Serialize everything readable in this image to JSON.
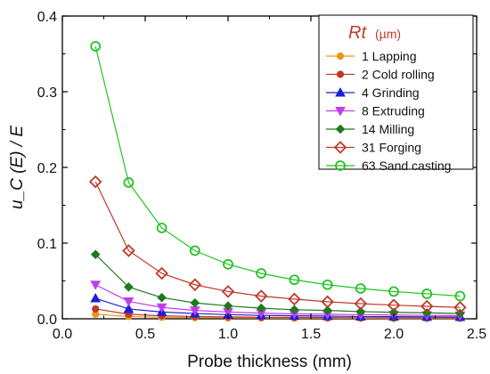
{
  "chart_data": {
    "type": "line",
    "xlabel": "Probe thickness (mm)",
    "ylabel": "u_C (E) / E",
    "xlim": [
      0.0,
      2.5
    ],
    "ylim": [
      0.0,
      0.4
    ],
    "xticks": [
      "0.0",
      "0.5",
      "1.0",
      "1.5",
      "2.0",
      "2.5"
    ],
    "yticks": [
      "0.0",
      "0.1",
      "0.2",
      "0.3",
      "0.4"
    ],
    "grid": false,
    "legend_placement": "top-right",
    "legend_title": "Rt",
    "legend_unit": "(µm)",
    "x": [
      0.2,
      0.4,
      0.6,
      0.8,
      1.0,
      1.2,
      1.4,
      1.6,
      1.8,
      2.0,
      2.2,
      2.4
    ],
    "series": [
      {
        "name": "1 Lapping",
        "color": "#e8961e",
        "marker": "circle-filled",
        "values": [
          0.006,
          0.003,
          0.002,
          0.0015,
          0.0012,
          0.001,
          0.0009,
          0.0008,
          0.0007,
          0.0006,
          0.0005,
          0.0005
        ]
      },
      {
        "name": "2 Cold rolling",
        "color": "#c0392b",
        "marker": "circle-filled",
        "values": [
          0.013,
          0.006,
          0.004,
          0.003,
          0.0025,
          0.002,
          0.0018,
          0.0016,
          0.0014,
          0.0013,
          0.0012,
          0.0011
        ]
      },
      {
        "name": "4 Grinding",
        "color": "#1f1fd6",
        "marker": "triangle-up-filled",
        "values": [
          0.027,
          0.013,
          0.009,
          0.007,
          0.0055,
          0.0045,
          0.004,
          0.0035,
          0.003,
          0.0028,
          0.0026,
          0.0024
        ]
      },
      {
        "name": "8 Extruding",
        "color": "#c43ce8",
        "marker": "triangle-down-filled",
        "values": [
          0.045,
          0.023,
          0.015,
          0.011,
          0.009,
          0.0075,
          0.0065,
          0.006,
          0.0055,
          0.005,
          0.0045,
          0.0042
        ]
      },
      {
        "name": "14 Milling",
        "color": "#1e7a1e",
        "marker": "diamond-filled",
        "values": [
          0.085,
          0.042,
          0.028,
          0.021,
          0.017,
          0.014,
          0.012,
          0.011,
          0.0095,
          0.0085,
          0.0078,
          0.0071
        ]
      },
      {
        "name": "31 Forging",
        "color": "#c0392b",
        "marker": "diamond-open",
        "values": [
          0.181,
          0.09,
          0.06,
          0.045,
          0.036,
          0.03,
          0.026,
          0.0225,
          0.02,
          0.018,
          0.0165,
          0.015
        ]
      },
      {
        "name": "63 Sand casting",
        "color": "#22c322",
        "marker": "circle-open",
        "values": [
          0.36,
          0.18,
          0.12,
          0.09,
          0.072,
          0.06,
          0.0515,
          0.045,
          0.04,
          0.036,
          0.033,
          0.03
        ]
      }
    ]
  }
}
